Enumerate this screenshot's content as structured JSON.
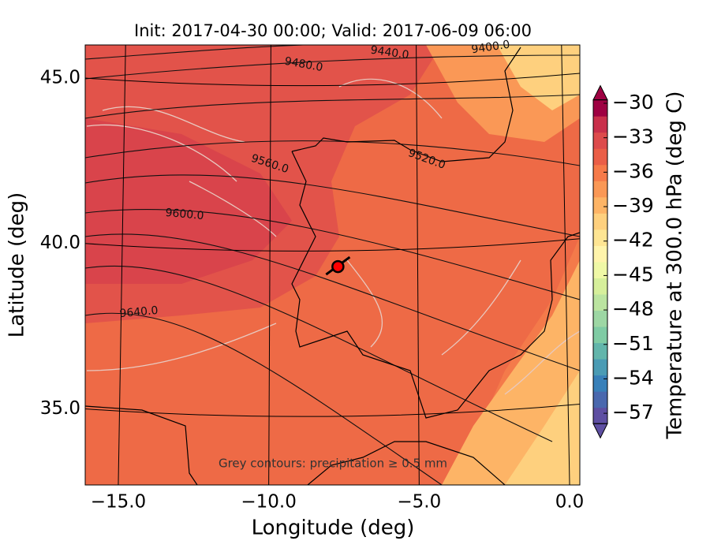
{
  "chart_data": {
    "type": "contour-map",
    "title": "Init: 2017-04-30 00:00; Valid: 2017-06-09 06:00",
    "xlabel": "Longitude (deg)",
    "ylabel": "Latitude (deg)",
    "xlim": [
      -16.1,
      0.34
    ],
    "ylim": [
      32.7,
      46.0
    ],
    "xticks": [
      {
        "value": -15,
        "label": "−15.0"
      },
      {
        "value": -10,
        "label": "−10.0"
      },
      {
        "value": -5,
        "label": "−5.0"
      },
      {
        "value": 0,
        "label": "0.0"
      }
    ],
    "yticks": [
      {
        "value": 35,
        "label": "35.0"
      },
      {
        "value": 40,
        "label": "40.0"
      },
      {
        "value": 45,
        "label": "45.0"
      }
    ],
    "grid": true,
    "colorbar": {
      "label": "Temperature at 300.0 hPa (deg C)",
      "clim": [
        -57.9,
        -29.7
      ],
      "ticks": [
        {
          "value": -30,
          "label": "−30"
        },
        {
          "value": -33,
          "label": "−33"
        },
        {
          "value": -36,
          "label": "−36"
        },
        {
          "value": -39,
          "label": "−39"
        },
        {
          "value": -42,
          "label": "−42"
        },
        {
          "value": -45,
          "label": "−45"
        },
        {
          "value": -48,
          "label": "−48"
        },
        {
          "value": -51,
          "label": "−51"
        },
        {
          "value": -54,
          "label": "−54"
        },
        {
          "value": -57,
          "label": "−57"
        }
      ],
      "colors": [
        "#5e4fa2",
        "#4a68ae",
        "#3880b9",
        "#4a9bb4",
        "#62b5ab",
        "#7fcba4",
        "#9dd7a4",
        "#bbe4a0",
        "#d6ef9b",
        "#eff8a6",
        "#fff4ab",
        "#fee593",
        "#fed07e",
        "#fdb466",
        "#fa9856",
        "#f67a49",
        "#ea5e47",
        "#dd4b4c",
        "#c9304b",
        "#9e0142"
      ]
    },
    "contour_labels": [
      "9400.0",
      "9440.0",
      "9480.0",
      "9520.0",
      "9560.0",
      "9600.0",
      "9640.0"
    ],
    "note": "Grey contours: precipitation ≥ 0.5 mm",
    "marker": {
      "lon": -7.7,
      "lat": 39.3,
      "color": "#ff0000"
    }
  }
}
